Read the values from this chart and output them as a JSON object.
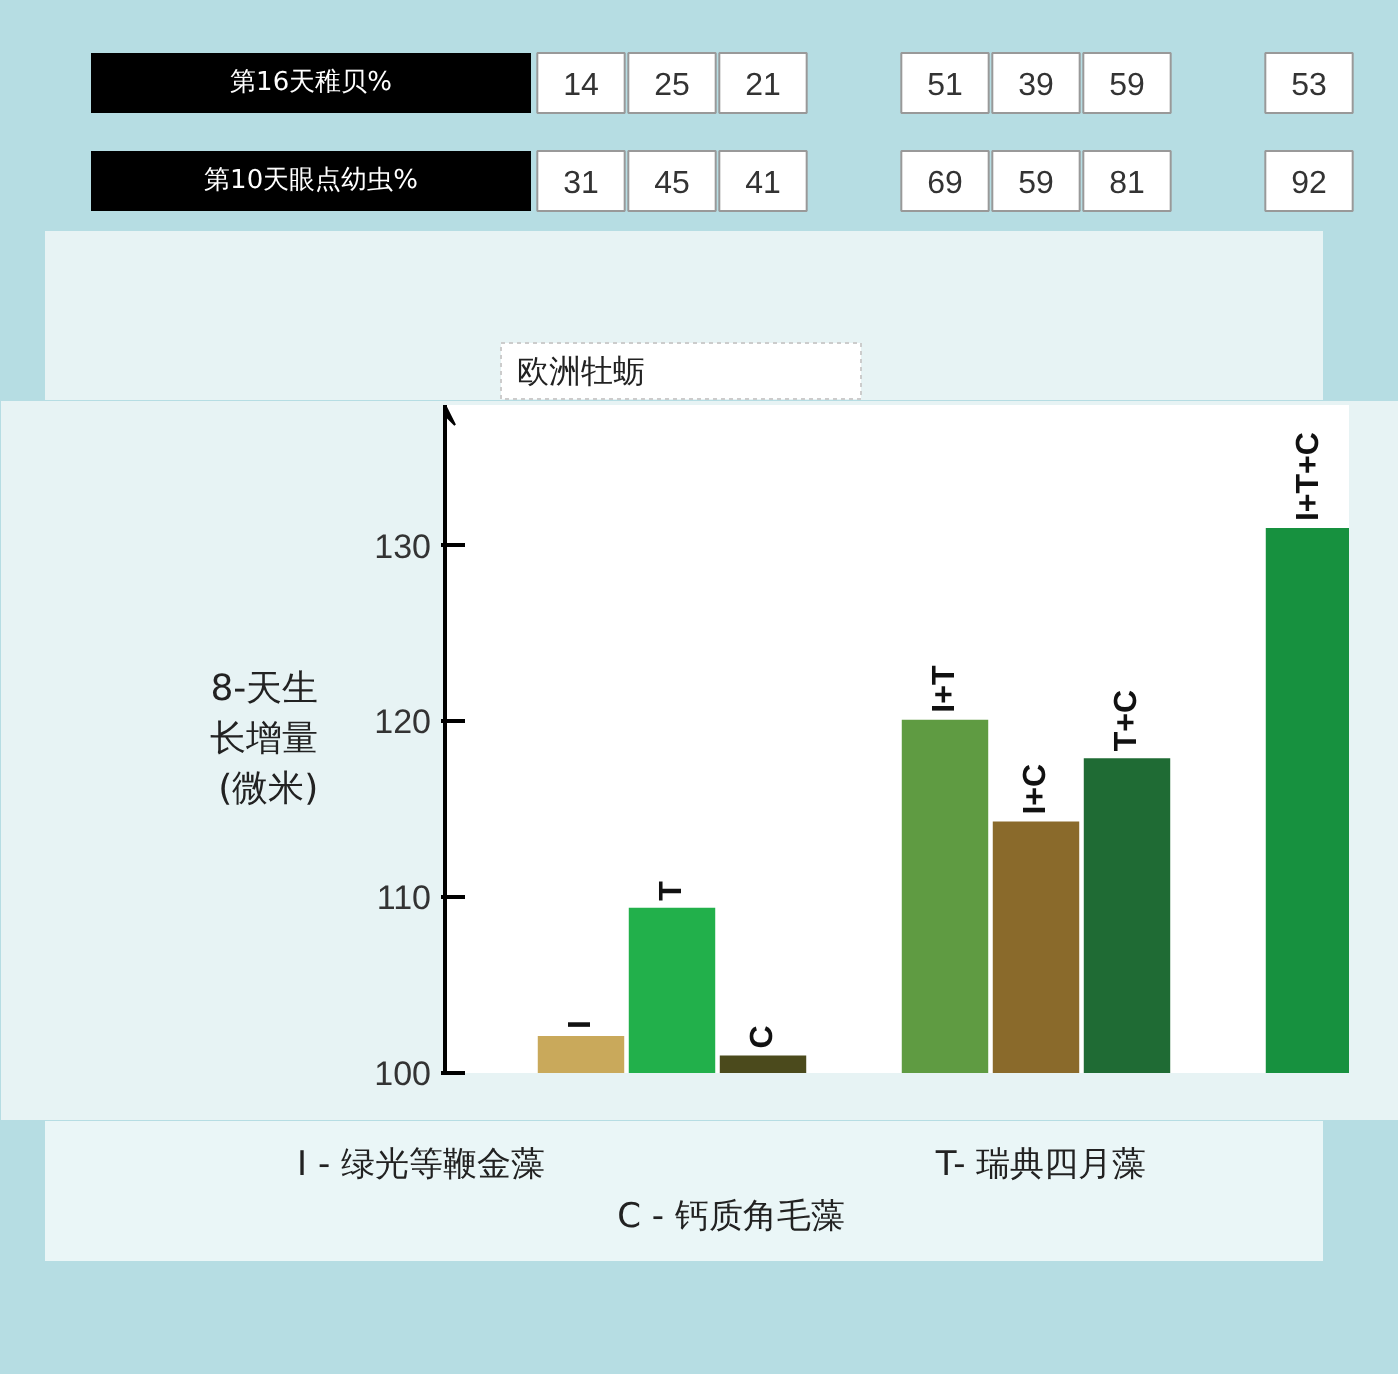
{
  "chart_data": {
    "type": "bar",
    "title": "欧洲牡蛎",
    "ylabel": "8-天生长增量(微米)",
    "categories": [
      "I",
      "T",
      "C",
      null,
      "I+T",
      "I+C",
      "T+C",
      null,
      "I+T+C"
    ],
    "values": [
      102.1,
      109.4,
      101.0,
      null,
      120.1,
      114.3,
      117.9,
      null,
      131.0
    ],
    "colors": [
      "#c9a95b",
      "#22b04b",
      "#4b4a1c",
      null,
      "#5f9b42",
      "#8a6a2b",
      "#1f6b34",
      null,
      "#17913f"
    ],
    "ylim": [
      100,
      138
    ],
    "yticks": [
      100,
      110,
      120,
      130
    ],
    "grid": false,
    "annotations": [
      "第16天稚贝%",
      "14",
      "25",
      "21",
      "51",
      "39",
      "59",
      "53",
      "第10天眼点幼虫%",
      "31",
      "45",
      "41",
      "69",
      "59",
      "81",
      "92",
      "I - 绿光等鞭金藻",
      "T- 瑞典四月藻",
      "C - 钙质角毛藻"
    ]
  }
}
